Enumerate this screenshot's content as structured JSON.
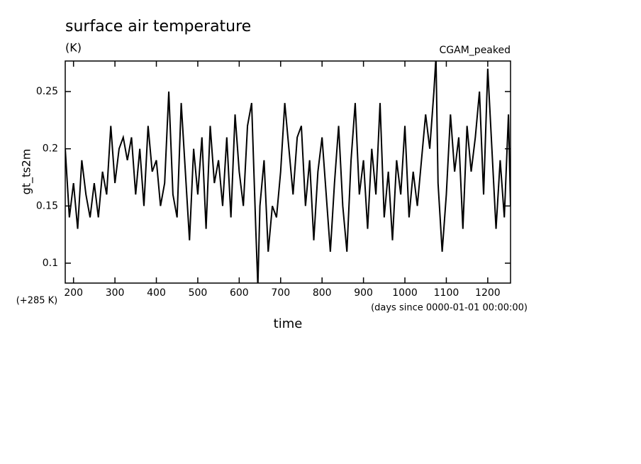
{
  "chart_data": {
    "type": "line",
    "title": "surface air temperature",
    "subtitle": "(K)",
    "annotation": "CGAM_peaked",
    "y_label": "gt_ts2m",
    "y_offset_label": "(+285 K)",
    "x_label": "time",
    "x_units_label": "(days since 0000-01-01 00:00:00)",
    "xlim": [
      180,
      1255
    ],
    "ylim": [
      0.0826,
      0.2767
    ],
    "xticks": [
      200,
      300,
      400,
      500,
      600,
      700,
      800,
      900,
      1000,
      1100,
      1200
    ],
    "yticks": [
      0.1,
      0.15,
      0.2,
      0.25
    ],
    "series": [
      {
        "name": "gt_ts2m",
        "color": "#000000",
        "x": [
          180,
          190,
          200,
          210,
          220,
          230,
          240,
          250,
          260,
          270,
          280,
          290,
          300,
          310,
          320,
          330,
          340,
          350,
          360,
          370,
          380,
          390,
          400,
          410,
          420,
          430,
          440,
          450,
          460,
          470,
          480,
          490,
          500,
          510,
          520,
          530,
          540,
          550,
          560,
          570,
          580,
          590,
          600,
          610,
          620,
          630,
          640,
          645,
          650,
          660,
          670,
          680,
          690,
          700,
          710,
          720,
          730,
          740,
          750,
          760,
          770,
          780,
          790,
          800,
          810,
          820,
          830,
          840,
          850,
          860,
          870,
          880,
          890,
          900,
          910,
          920,
          930,
          940,
          950,
          960,
          970,
          980,
          990,
          1000,
          1010,
          1020,
          1030,
          1040,
          1050,
          1060,
          1070,
          1075,
          1080,
          1090,
          1100,
          1110,
          1120,
          1130,
          1140,
          1150,
          1160,
          1170,
          1180,
          1190,
          1200,
          1210,
          1220,
          1230,
          1240,
          1250,
          1255
        ],
        "values": [
          0.2,
          0.14,
          0.17,
          0.13,
          0.19,
          0.16,
          0.14,
          0.17,
          0.14,
          0.18,
          0.16,
          0.22,
          0.17,
          0.2,
          0.21,
          0.19,
          0.21,
          0.16,
          0.2,
          0.15,
          0.22,
          0.18,
          0.19,
          0.15,
          0.17,
          0.25,
          0.16,
          0.14,
          0.24,
          0.18,
          0.12,
          0.2,
          0.16,
          0.21,
          0.13,
          0.22,
          0.17,
          0.19,
          0.15,
          0.21,
          0.14,
          0.23,
          0.18,
          0.15,
          0.22,
          0.24,
          0.13,
          0.08,
          0.15,
          0.19,
          0.11,
          0.15,
          0.14,
          0.18,
          0.24,
          0.2,
          0.16,
          0.21,
          0.22,
          0.15,
          0.19,
          0.12,
          0.18,
          0.21,
          0.16,
          0.11,
          0.17,
          0.22,
          0.15,
          0.11,
          0.19,
          0.24,
          0.16,
          0.19,
          0.13,
          0.2,
          0.16,
          0.24,
          0.14,
          0.18,
          0.12,
          0.19,
          0.16,
          0.22,
          0.14,
          0.18,
          0.15,
          0.19,
          0.23,
          0.2,
          0.25,
          0.28,
          0.17,
          0.11,
          0.16,
          0.23,
          0.18,
          0.21,
          0.13,
          0.22,
          0.18,
          0.21,
          0.25,
          0.16,
          0.27,
          0.2,
          0.13,
          0.19,
          0.14,
          0.23,
          0.15
        ]
      }
    ]
  }
}
